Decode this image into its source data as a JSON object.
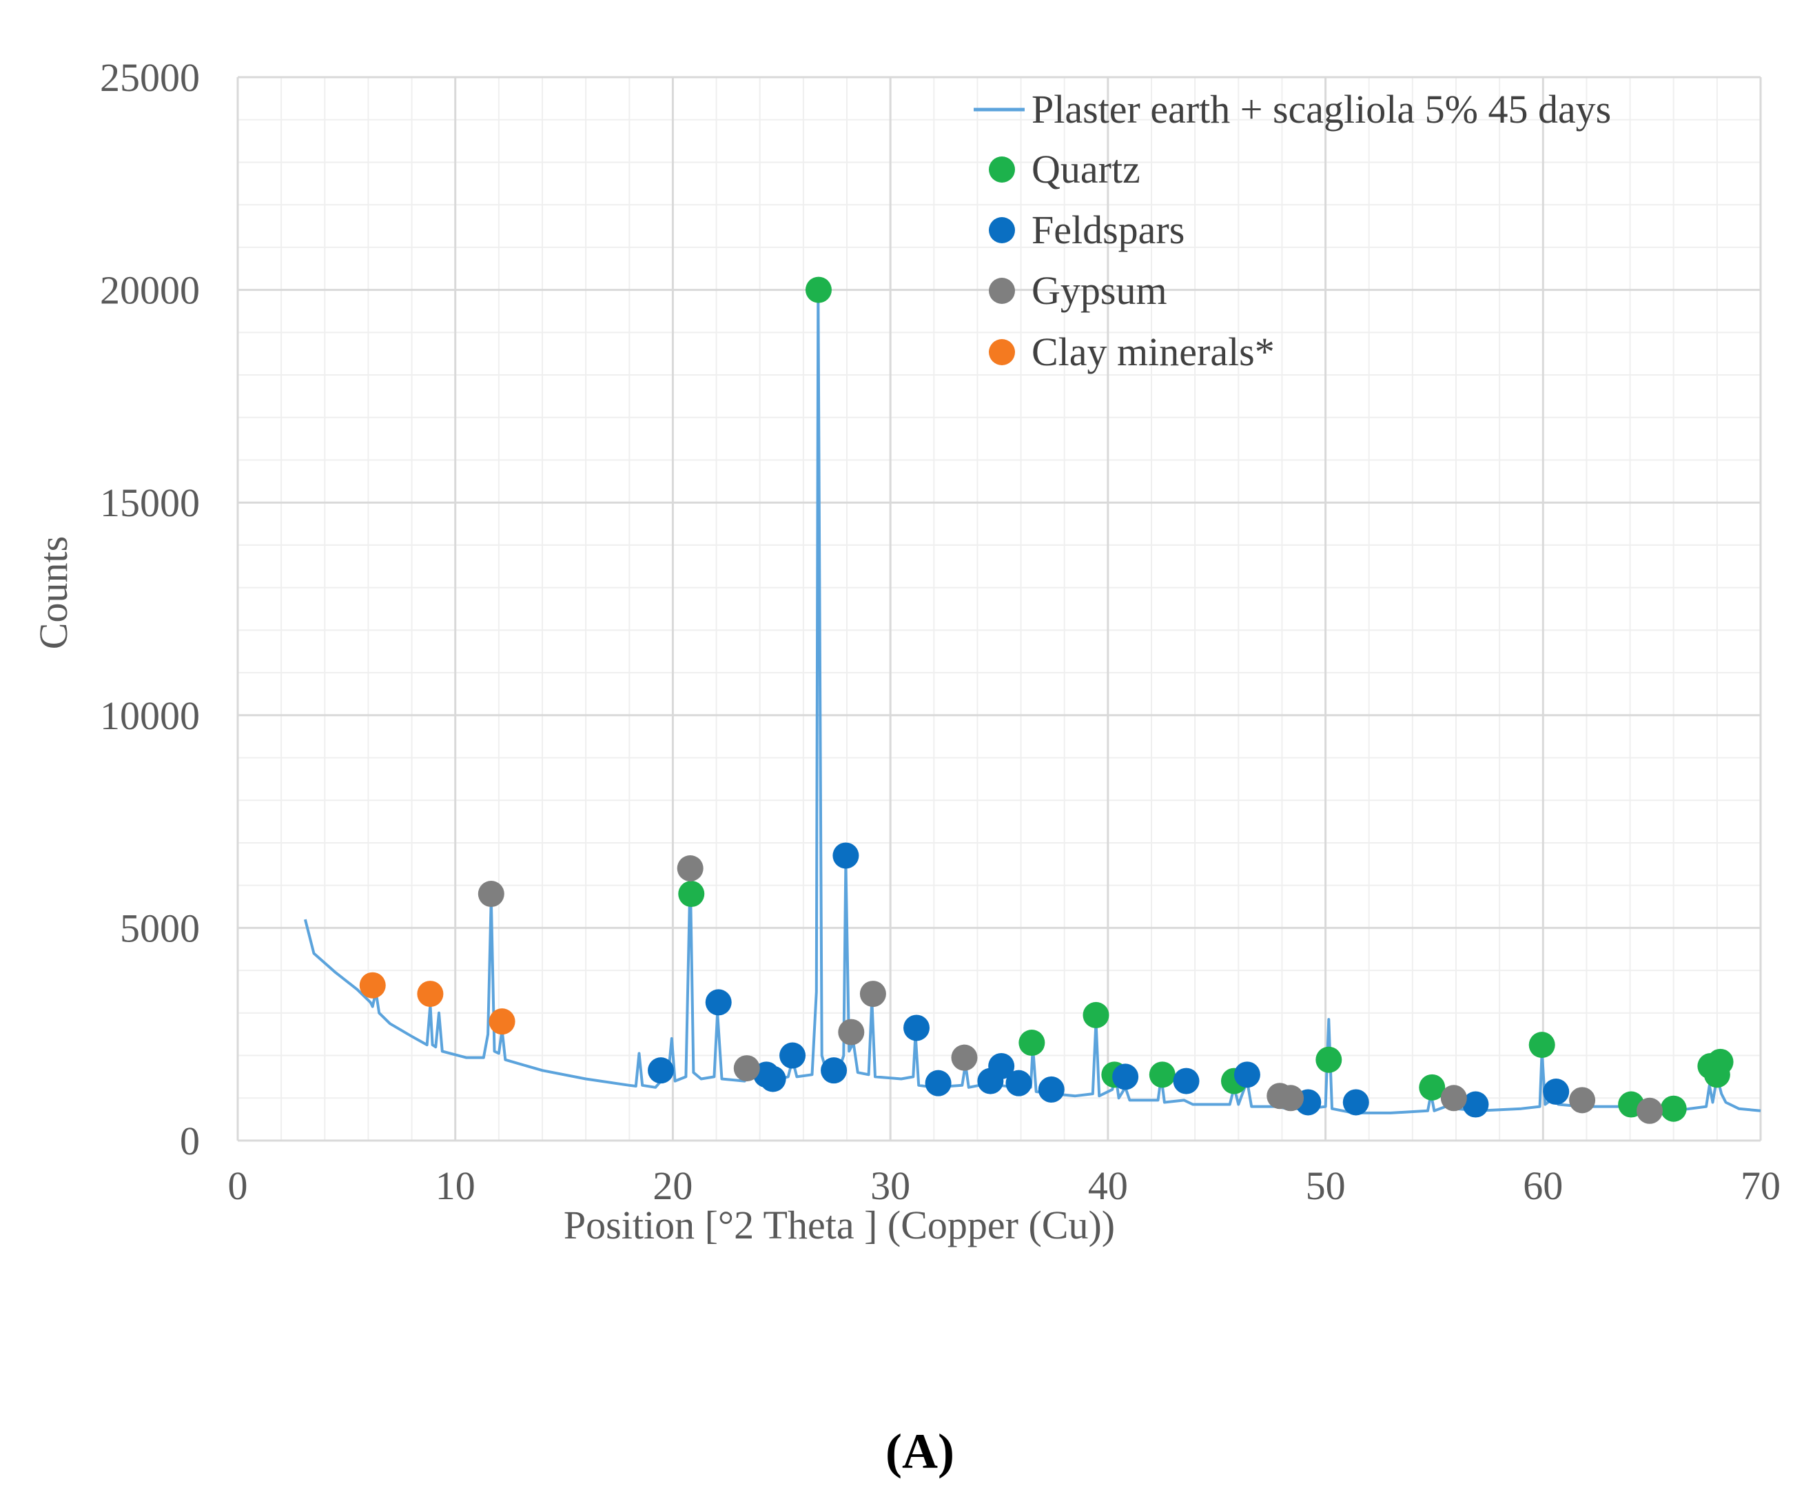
{
  "chart_data": {
    "type": "line",
    "title": "",
    "xlabel": "Position [°2 Theta ] (Copper (Cu))",
    "ylabel": "Counts",
    "xlim": [
      0,
      70
    ],
    "ylim": [
      0,
      25000
    ],
    "x_ticks": [
      "0",
      "10",
      "20",
      "30",
      "40",
      "50",
      "60",
      "70"
    ],
    "y_ticks": [
      "0",
      "5000",
      "10000",
      "15000",
      "20000",
      "25000"
    ],
    "grid": true,
    "legend_position": "top-right",
    "panel_label": "(A)",
    "line_color": "#5ba3dc",
    "series": [
      {
        "name": "Plaster earth + scagliola 5% 45 days",
        "points": [
          [
            3.1,
            5200
          ],
          [
            3.5,
            4400
          ],
          [
            4.5,
            3950
          ],
          [
            5.5,
            3550
          ],
          [
            6.1,
            3250
          ],
          [
            6.2,
            3150
          ],
          [
            6.35,
            3500
          ],
          [
            6.5,
            3000
          ],
          [
            7.0,
            2750
          ],
          [
            8.0,
            2450
          ],
          [
            8.7,
            2250
          ],
          [
            8.85,
            3200
          ],
          [
            8.95,
            2250
          ],
          [
            9.1,
            2200
          ],
          [
            9.25,
            3000
          ],
          [
            9.4,
            2100
          ],
          [
            10.5,
            1950
          ],
          [
            11.3,
            1950
          ],
          [
            11.5,
            2500
          ],
          [
            11.65,
            5700
          ],
          [
            11.8,
            2100
          ],
          [
            12.0,
            2050
          ],
          [
            12.15,
            2600
          ],
          [
            12.3,
            1900
          ],
          [
            14.0,
            1650
          ],
          [
            16.0,
            1450
          ],
          [
            18.0,
            1300
          ],
          [
            18.3,
            1280
          ],
          [
            18.45,
            2050
          ],
          [
            18.6,
            1300
          ],
          [
            19.2,
            1250
          ],
          [
            19.8,
            1600
          ],
          [
            19.95,
            2400
          ],
          [
            20.1,
            1400
          ],
          [
            20.6,
            1500
          ],
          [
            20.8,
            6300
          ],
          [
            20.95,
            1600
          ],
          [
            21.3,
            1450
          ],
          [
            21.9,
            1500
          ],
          [
            22.05,
            3000
          ],
          [
            22.25,
            1450
          ],
          [
            23.3,
            1400
          ],
          [
            23.6,
            1600
          ],
          [
            23.9,
            1400
          ],
          [
            24.3,
            1500
          ],
          [
            24.6,
            1400
          ],
          [
            25.3,
            1500
          ],
          [
            25.5,
            1900
          ],
          [
            25.7,
            1500
          ],
          [
            26.4,
            1550
          ],
          [
            26.6,
            3500
          ],
          [
            26.68,
            20000
          ],
          [
            26.85,
            2000
          ],
          [
            27.1,
            1550
          ],
          [
            27.4,
            1700
          ],
          [
            27.6,
            1600
          ],
          [
            27.85,
            2000
          ],
          [
            27.95,
            6550
          ],
          [
            28.1,
            2100
          ],
          [
            28.3,
            2300
          ],
          [
            28.5,
            1600
          ],
          [
            29.0,
            1550
          ],
          [
            29.15,
            3300
          ],
          [
            29.3,
            1500
          ],
          [
            30.5,
            1450
          ],
          [
            31.05,
            1500
          ],
          [
            31.15,
            2500
          ],
          [
            31.3,
            1300
          ],
          [
            32.0,
            1250
          ],
          [
            33.3,
            1300
          ],
          [
            33.45,
            1800
          ],
          [
            33.6,
            1250
          ],
          [
            34.6,
            1350
          ],
          [
            34.8,
            1800
          ],
          [
            35.0,
            1300
          ],
          [
            35.8,
            1250
          ],
          [
            36.0,
            1450
          ],
          [
            36.2,
            1200
          ],
          [
            36.45,
            1250
          ],
          [
            36.55,
            2200
          ],
          [
            36.7,
            1150
          ],
          [
            37.5,
            1100
          ],
          [
            38.5,
            1050
          ],
          [
            39.3,
            1100
          ],
          [
            39.45,
            2800
          ],
          [
            39.6,
            1050
          ],
          [
            40.2,
            1200
          ],
          [
            40.35,
            1550
          ],
          [
            40.5,
            1000
          ],
          [
            40.8,
            1250
          ],
          [
            41.0,
            950
          ],
          [
            42.3,
            950
          ],
          [
            42.45,
            1500
          ],
          [
            42.6,
            900
          ],
          [
            43.5,
            950
          ],
          [
            43.9,
            850
          ],
          [
            45.6,
            850
          ],
          [
            45.8,
            1250
          ],
          [
            46.0,
            850
          ],
          [
            46.4,
            1400
          ],
          [
            46.6,
            800
          ],
          [
            47.8,
            800
          ],
          [
            48.2,
            750
          ],
          [
            49.2,
            750
          ],
          [
            50.0,
            800
          ],
          [
            50.15,
            2850
          ],
          [
            50.3,
            750
          ],
          [
            51.3,
            650
          ],
          [
            53.0,
            650
          ],
          [
            54.7,
            700
          ],
          [
            54.85,
            1100
          ],
          [
            55.0,
            700
          ],
          [
            55.8,
            850
          ],
          [
            56.0,
            750
          ],
          [
            57.0,
            700
          ],
          [
            59.0,
            750
          ],
          [
            59.85,
            800
          ],
          [
            59.95,
            2100
          ],
          [
            60.1,
            850
          ],
          [
            60.5,
            1000
          ],
          [
            60.7,
            850
          ],
          [
            61.8,
            800
          ],
          [
            63.5,
            800
          ],
          [
            64.0,
            850
          ],
          [
            64.5,
            700
          ],
          [
            66.0,
            700
          ],
          [
            67.5,
            800
          ],
          [
            67.65,
            1300
          ],
          [
            67.8,
            900
          ],
          [
            68.0,
            1500
          ],
          [
            68.2,
            1100
          ],
          [
            68.4,
            900
          ],
          [
            69.0,
            750
          ],
          [
            70.0,
            700
          ]
        ]
      }
    ],
    "markers": [
      {
        "name": "Quartz",
        "color": "#1db24c",
        "points": [
          [
            20.85,
            5800
          ],
          [
            26.7,
            20000
          ],
          [
            36.5,
            2300
          ],
          [
            39.45,
            2950
          ],
          [
            40.3,
            1550
          ],
          [
            42.5,
            1550
          ],
          [
            45.8,
            1400
          ],
          [
            50.15,
            1900
          ],
          [
            54.9,
            1250
          ],
          [
            59.95,
            2250
          ],
          [
            64.05,
            850
          ],
          [
            66.0,
            750
          ],
          [
            67.7,
            1750
          ],
          [
            68.15,
            1850
          ],
          [
            68.0,
            1550
          ]
        ]
      },
      {
        "name": "Feldspars",
        "color": "#0a6fc2",
        "points": [
          [
            19.45,
            1650
          ],
          [
            22.1,
            3250
          ],
          [
            24.3,
            1550
          ],
          [
            24.6,
            1450
          ],
          [
            25.5,
            2000
          ],
          [
            27.4,
            1650
          ],
          [
            27.95,
            6700
          ],
          [
            31.2,
            2650
          ],
          [
            32.2,
            1350
          ],
          [
            34.6,
            1400
          ],
          [
            35.1,
            1750
          ],
          [
            35.9,
            1350
          ],
          [
            37.4,
            1200
          ],
          [
            40.8,
            1500
          ],
          [
            43.6,
            1400
          ],
          [
            46.4,
            1550
          ],
          [
            49.2,
            900
          ],
          [
            51.4,
            900
          ],
          [
            56.9,
            850
          ],
          [
            60.6,
            1150
          ]
        ]
      },
      {
        "name": "Gypsum",
        "color": "#7f7f7f",
        "points": [
          [
            11.65,
            5800
          ],
          [
            20.8,
            6400
          ],
          [
            23.4,
            1700
          ],
          [
            28.2,
            2550
          ],
          [
            29.2,
            3450
          ],
          [
            33.4,
            1950
          ],
          [
            47.9,
            1050
          ],
          [
            48.4,
            1000
          ],
          [
            55.9,
            1000
          ],
          [
            61.8,
            950
          ],
          [
            64.9,
            700
          ]
        ]
      },
      {
        "name": "Clay minerals*",
        "color": "#f47a20",
        "points": [
          [
            6.2,
            3650
          ],
          [
            8.85,
            3450
          ],
          [
            12.15,
            2800
          ]
        ]
      }
    ]
  }
}
